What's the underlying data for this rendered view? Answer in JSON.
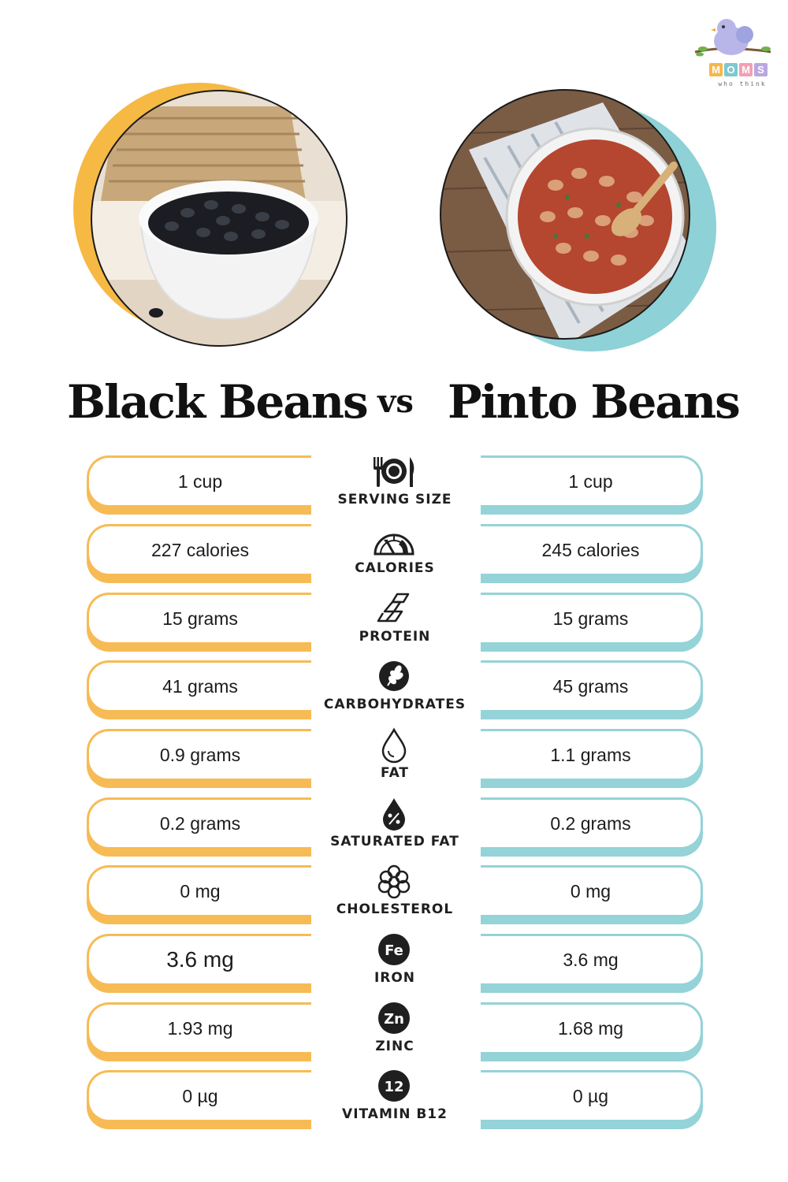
{
  "logo": {
    "letters": [
      "M",
      "O",
      "M",
      "S"
    ],
    "letter_colors": [
      "#f7b847",
      "#7ec8cf",
      "#f39fb5",
      "#b9a7e0"
    ],
    "tagline": "who think",
    "icon": "bird-logo-icon"
  },
  "left": {
    "title": "Black Beans",
    "accent_color": "#f7bb55",
    "photo_icon": "black-beans-bowl-photo"
  },
  "right": {
    "title": "Pinto Beans",
    "accent_color": "#94d3d8",
    "photo_icon": "pinto-beans-bowl-photo"
  },
  "vs_label": "vs",
  "rows": [
    {
      "label": "SERVING SIZE",
      "icon": "utensils-plate-icon",
      "left": "1 cup",
      "right": "1 cup"
    },
    {
      "label": "CALORIES",
      "icon": "gauge-icon",
      "left": "227 calories",
      "right": "245 calories"
    },
    {
      "label": "PROTEIN",
      "icon": "protein-chain-icon",
      "left": "15 grams",
      "right": "15 grams"
    },
    {
      "label": "CARBOHYDRATES",
      "icon": "wheat-icon",
      "left": "41 grams",
      "right": "45 grams"
    },
    {
      "label": "FAT",
      "icon": "drop-icon",
      "left": "0.9 grams",
      "right": "1.1 grams"
    },
    {
      "label": "SATURATED FAT",
      "icon": "percent-drop-icon",
      "left": "0.2 grams",
      "right": "0.2 grams"
    },
    {
      "label": "CHOLESTEROL",
      "icon": "molecule-icon",
      "left": "0 mg",
      "right": "0 mg"
    },
    {
      "label": "IRON",
      "icon": "iron-fe-icon",
      "icon_text": "Fe",
      "left": "3.6 mg",
      "right": "3.6 mg"
    },
    {
      "label": "ZINC",
      "icon": "zinc-zn-icon",
      "icon_text": "Zn",
      "left": "1.93 mg",
      "right": "1.68 mg"
    },
    {
      "label": "VITAMIN B12",
      "icon": "vitamin-b12-icon",
      "icon_text": "12",
      "left": "0 µg",
      "right": "0 µg"
    }
  ]
}
